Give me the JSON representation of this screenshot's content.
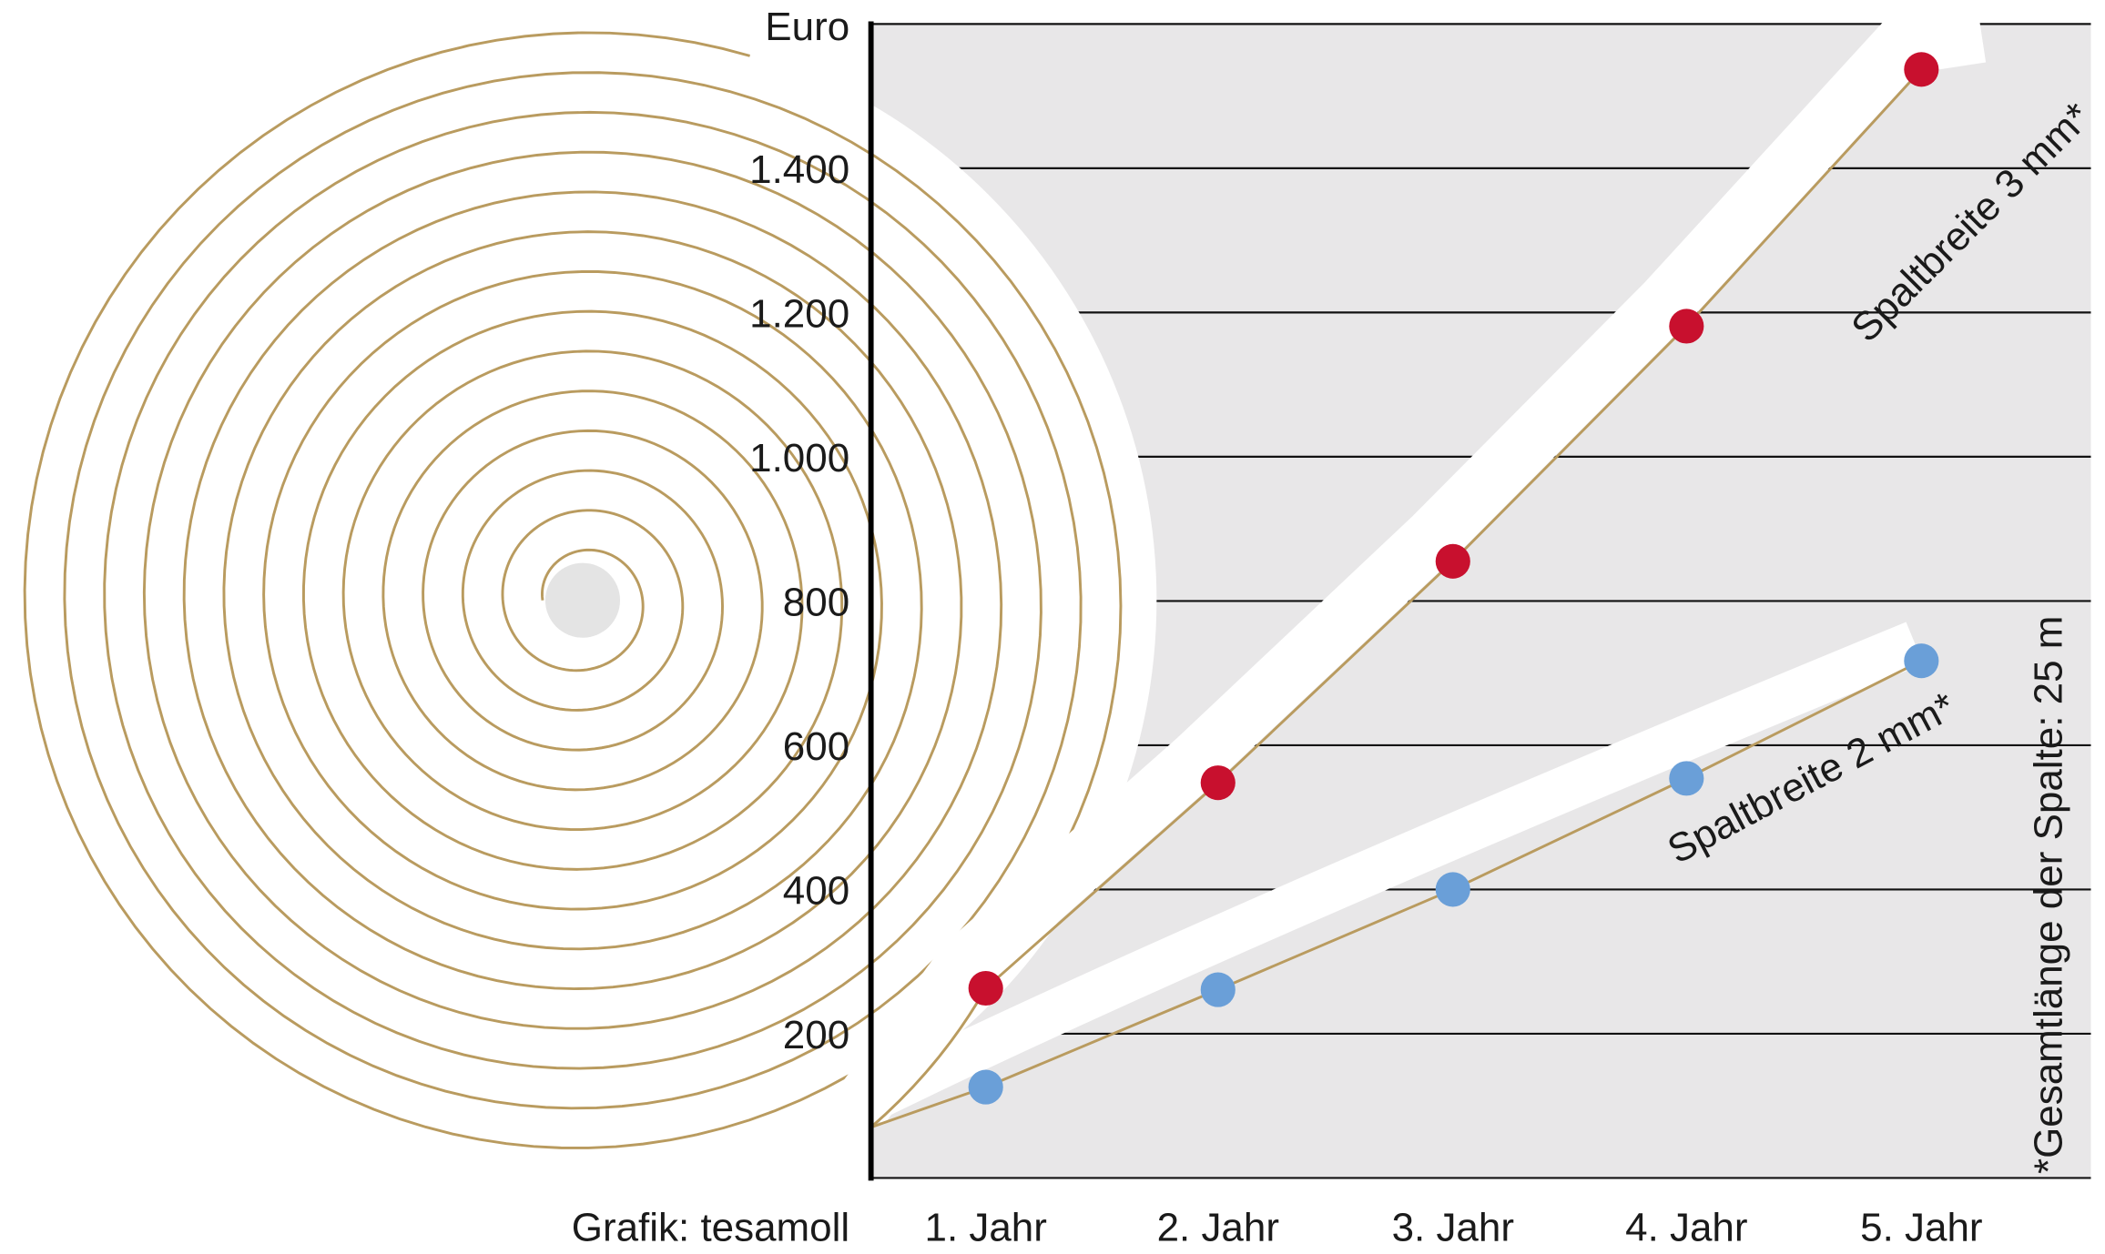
{
  "chart_data": {
    "type": "line",
    "ylabel": "Euro",
    "ylim": [
      0,
      1600
    ],
    "yticks": [
      200,
      400,
      600,
      800,
      1000,
      1200,
      1400
    ],
    "ytick_labels": [
      "200",
      "400",
      "600",
      "800",
      "1.000",
      "1.200",
      "1.400"
    ],
    "categories": [
      "1. Jahr",
      "2. Jahr",
      "3. Jahr",
      "4. Jahr",
      "5. Jahr"
    ],
    "grid": true,
    "series": [
      {
        "name": "Spaltbreite 3 mm*",
        "color": "#c8102e",
        "values": [
          263,
          548,
          855,
          1181,
          1537
        ]
      },
      {
        "name": "Spaltbreite 2 mm*",
        "color": "#6a9fd8",
        "values": [
          126,
          261,
          400,
          554,
          717
        ]
      }
    ],
    "annotations": [
      "*Gesamtlänge der Spalte: 25 m"
    ],
    "credit": "Grafik: tesamoll",
    "colors": {
      "background": "#e8e7e8",
      "spiral": "#b99b5f",
      "band": "#ffffff"
    }
  }
}
